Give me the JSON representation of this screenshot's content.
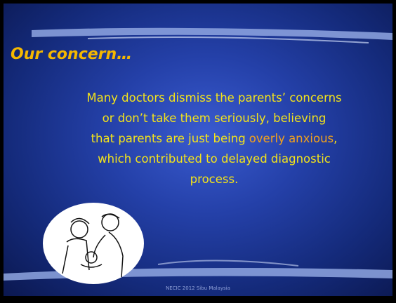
{
  "slide": {
    "title": "Our concern…",
    "body_lines": [
      "Many doctors dismiss the parents’ concerns",
      "or don’t take them seriously, believing"
    ],
    "highlight_line": {
      "before": "that parents are just being",
      "highlight": "overly anxious",
      "after": ","
    },
    "closing_lines": [
      "which contributed to delayed diagnostic",
      "process."
    ],
    "footer": "NECIC 2012 Sibu Malaysia"
  }
}
